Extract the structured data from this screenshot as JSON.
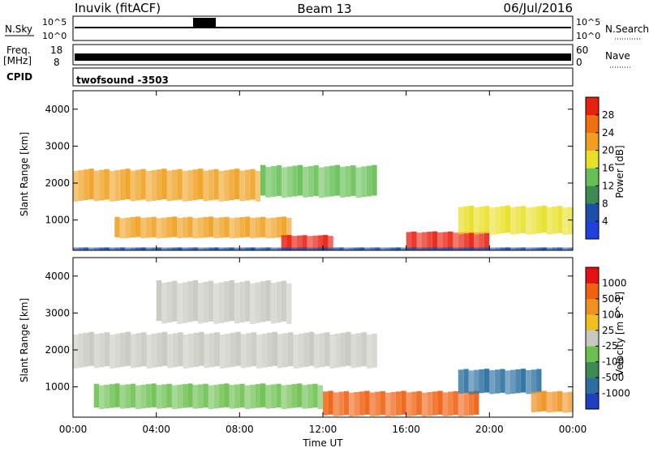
{
  "header": {
    "station": "Inuvik (fitACF)",
    "beam": "Beam 13",
    "date": "06/Jul/2016"
  },
  "top_panels": {
    "nsky_label": "N.Sky",
    "nsky_ticks": [
      "10^5",
      "10^0"
    ],
    "nsearch_label": "N.Search",
    "freq_label_1": "Freq.",
    "freq_label_2": "[MHz]",
    "freq_ticks": [
      "18",
      "8"
    ],
    "nave_label": "Nave",
    "nave_ticks": [
      "60",
      "0"
    ],
    "cpid_label": "CPID",
    "cpid_value": "twofsound -3503"
  },
  "chart_data": [
    {
      "type": "heatmap",
      "name": "power",
      "xlabel": "Time UT",
      "ylabel": "Slant Range [km]",
      "xlim": [
        0,
        24
      ],
      "ylim": [
        180,
        4500
      ],
      "x_ticks": [
        "00:00",
        "04:00",
        "08:00",
        "12:00",
        "16:00",
        "20:00",
        "00:00"
      ],
      "y_ticks": [
        1000,
        2000,
        3000,
        4000
      ],
      "colorbar": {
        "label": "Power [dB]",
        "ticks": [
          "4",
          "8",
          "12",
          "16",
          "20",
          "24",
          "28"
        ],
        "colors": [
          "#2040e0",
          "#1c4fa8",
          "#3e8a55",
          "#66c055",
          "#e8e026",
          "#f0a020",
          "#f07010",
          "#e82010"
        ]
      },
      "bands": [
        {
          "t0": 0.0,
          "t1": 9.0,
          "r0": 1500,
          "r1": 2400,
          "level": 5
        },
        {
          "t0": 9.0,
          "t1": 14.6,
          "r0": 1600,
          "r1": 2500,
          "level": 3
        },
        {
          "t0": 2.0,
          "t1": 10.5,
          "r0": 500,
          "r1": 1100,
          "level": 5
        },
        {
          "t0": 10.0,
          "t1": 12.5,
          "r0": 180,
          "r1": 600,
          "level": 7
        },
        {
          "t0": 16.0,
          "t1": 20.0,
          "r0": 180,
          "r1": 700,
          "level": 7
        },
        {
          "t0": 18.5,
          "t1": 24.0,
          "r0": 600,
          "r1": 1400,
          "level": 4
        },
        {
          "t0": 0.0,
          "t1": 24.0,
          "r0": 180,
          "r1": 260,
          "level": 1
        }
      ]
    },
    {
      "type": "heatmap",
      "name": "velocity",
      "xlabel": "Time UT",
      "ylabel": "Slant Range [km]",
      "xlim": [
        0,
        24
      ],
      "ylim": [
        180,
        4500
      ],
      "x_ticks": [
        "00:00",
        "04:00",
        "08:00",
        "12:00",
        "16:00",
        "20:00",
        "00:00"
      ],
      "y_ticks": [
        1000,
        2000,
        3000,
        4000
      ],
      "colorbar": {
        "label": "Velocity [m s^-1]",
        "ticks": [
          "1000",
          "500",
          "100",
          "25",
          "-25",
          "-100",
          "-500",
          "-1000"
        ],
        "colors": [
          "#1f3fbf",
          "#2a6fa0",
          "#3e8a55",
          "#6cc050",
          "#c8c8c0",
          "#f0c020",
          "#f09020",
          "#f06010",
          "#e81010"
        ]
      },
      "bands": [
        {
          "t0": 0.0,
          "t1": 14.6,
          "r0": 1500,
          "r1": 2500,
          "level": 4
        },
        {
          "t0": 4.0,
          "t1": 10.5,
          "r0": 2700,
          "r1": 3900,
          "level": 4
        },
        {
          "t0": 1.0,
          "t1": 12.0,
          "r0": 400,
          "r1": 1100,
          "level": 3
        },
        {
          "t0": 12.0,
          "t1": 19.5,
          "r0": 200,
          "r1": 900,
          "level": 7
        },
        {
          "t0": 18.5,
          "t1": 22.5,
          "r0": 800,
          "r1": 1500,
          "level": 1
        },
        {
          "t0": 22.0,
          "t1": 24.0,
          "r0": 300,
          "r1": 900,
          "level": 6
        }
      ]
    }
  ]
}
